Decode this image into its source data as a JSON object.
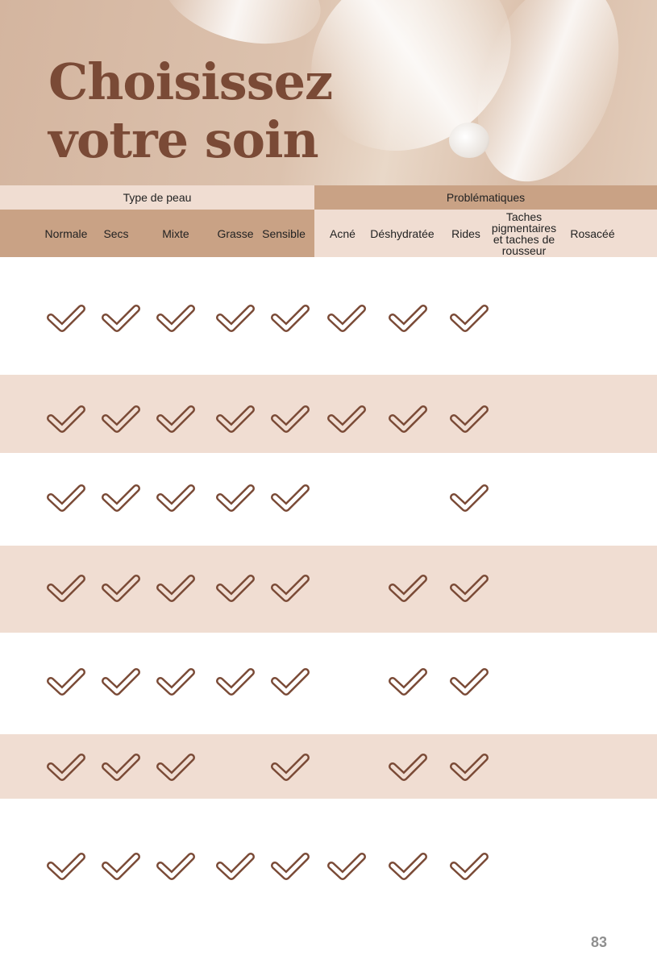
{
  "title": {
    "line1": "Choisissez",
    "line2": "votre soin"
  },
  "groups": {
    "skin": "Type de peau",
    "issues": "Problématiques"
  },
  "columns": [
    "Normale",
    "Secs",
    "Mixte",
    "Grasse",
    "Sensible",
    "Acné",
    "Déshydratée",
    "Rides",
    "Taches pigmentaires et taches de rousseur",
    "Rosacéé"
  ],
  "rows": [
    {
      "checks": [
        1,
        1,
        1,
        1,
        1,
        1,
        1,
        1,
        0,
        0
      ]
    },
    {
      "checks": [
        1,
        1,
        1,
        1,
        1,
        1,
        1,
        1,
        0,
        0
      ]
    },
    {
      "checks": [
        1,
        1,
        1,
        1,
        1,
        0,
        0,
        1,
        0,
        0
      ]
    },
    {
      "checks": [
        1,
        1,
        1,
        1,
        1,
        0,
        1,
        1,
        0,
        0
      ]
    },
    {
      "checks": [
        1,
        1,
        1,
        1,
        1,
        0,
        1,
        1,
        0,
        0
      ]
    },
    {
      "checks": [
        1,
        1,
        1,
        0,
        1,
        0,
        1,
        1,
        0,
        0
      ]
    },
    {
      "checks": [
        1,
        1,
        1,
        1,
        1,
        1,
        1,
        1,
        0,
        0
      ]
    }
  ],
  "icons": {
    "check": "check-icon"
  },
  "colors": {
    "brown": "#7a4a36",
    "tan": "#c9a285",
    "beige": "#f0ddd2"
  },
  "page_number": "83"
}
